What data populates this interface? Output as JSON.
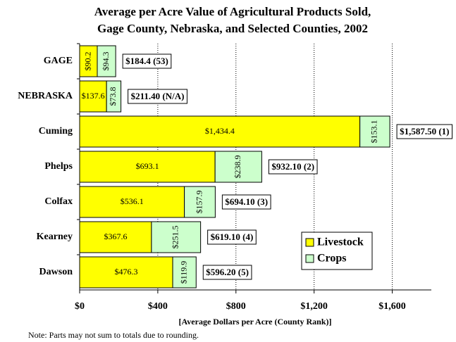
{
  "chart_data": {
    "type": "stacked_barh",
    "title": [
      "Average per Acre Value of Agricultural Products Sold,",
      "Gage County, Nebraska, and Selected Counties, 2002"
    ],
    "x_label": "[Average Dollars per Acre (County Rank)]",
    "note": "Note: Parts may not sum to totals due to rounding.",
    "categories": [
      "GAGE",
      "NEBRASKA",
      "Cuming",
      "Phelps",
      "Colfax",
      "Kearney",
      "Dawson"
    ],
    "series": [
      {
        "name": "Livestock",
        "color": "#ffff00",
        "values": [
          90.2,
          137.6,
          1434.4,
          693.1,
          536.1,
          367.6,
          476.3
        ],
        "value_labels": [
          "$90.2",
          "$137.6",
          "$1,434.4",
          "$693.1",
          "$536.1",
          "$367.6",
          "$476.3"
        ]
      },
      {
        "name": "Crops",
        "color": "#ccffcc",
        "values": [
          94.3,
          73.8,
          153.1,
          238.9,
          157.9,
          251.5,
          119.9
        ],
        "value_labels": [
          "$94.3",
          "$73.8",
          "$153.1",
          "$238.9",
          "$157.9",
          "$251.5",
          "$119.9"
        ]
      }
    ],
    "total_labels": [
      "$184.4 (53)",
      "$211.40 (N/A)",
      "$1,587.50 (1)",
      "$932.10 (2)",
      "$694.10 (3)",
      "$619.10 (4)",
      "$596.20 (5)"
    ],
    "xlim": [
      0,
      1800
    ],
    "xticks": [
      {
        "value": 0,
        "label": "$0"
      },
      {
        "value": 400,
        "label": "$400"
      },
      {
        "value": 800,
        "label": "$800"
      },
      {
        "value": 1200,
        "label": "$1,200"
      },
      {
        "value": 1600,
        "label": "$1,600"
      }
    ],
    "grid": true,
    "legend": "lower right"
  }
}
